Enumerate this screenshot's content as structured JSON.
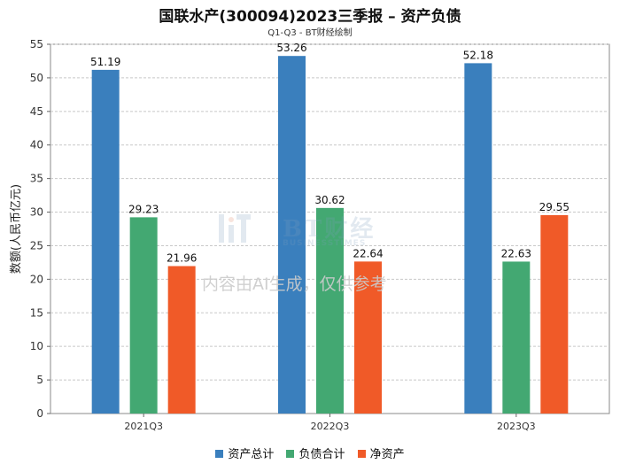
{
  "chart_data": {
    "type": "bar",
    "title": "国联水产(300094)2023三季报 – 资产负债",
    "subtitle": "Q1-Q3 - BT财经绘制",
    "ylabel": "数额(人民币亿元)",
    "xlabel": "",
    "ylim": [
      0,
      55
    ],
    "yticks": [
      0,
      5,
      10,
      15,
      20,
      25,
      30,
      35,
      40,
      45,
      50,
      55
    ],
    "grid": true,
    "categories": [
      "2021Q3",
      "2022Q3",
      "2023Q3"
    ],
    "series": [
      {
        "name": "资产总计",
        "color": "#3a7fbd",
        "values": [
          51.19,
          53.26,
          52.18
        ],
        "labels": [
          "51.19",
          "53.26",
          "52.18"
        ]
      },
      {
        "name": "负债合计",
        "color": "#43a872",
        "values": [
          29.23,
          30.62,
          22.63
        ],
        "labels": [
          "29.23",
          "30.62",
          "22.63"
        ]
      },
      {
        "name": "净资产",
        "color": "#f05a28",
        "values": [
          21.96,
          22.64,
          29.55
        ],
        "labels": [
          "21.96",
          "22.64",
          "29.55"
        ]
      }
    ],
    "legend_position": "bottom"
  },
  "watermark": {
    "logo_text": "BT财经",
    "logo_subtext": "BUSINESSTIMES",
    "notice": "内容由AI生成，仅供参考"
  }
}
